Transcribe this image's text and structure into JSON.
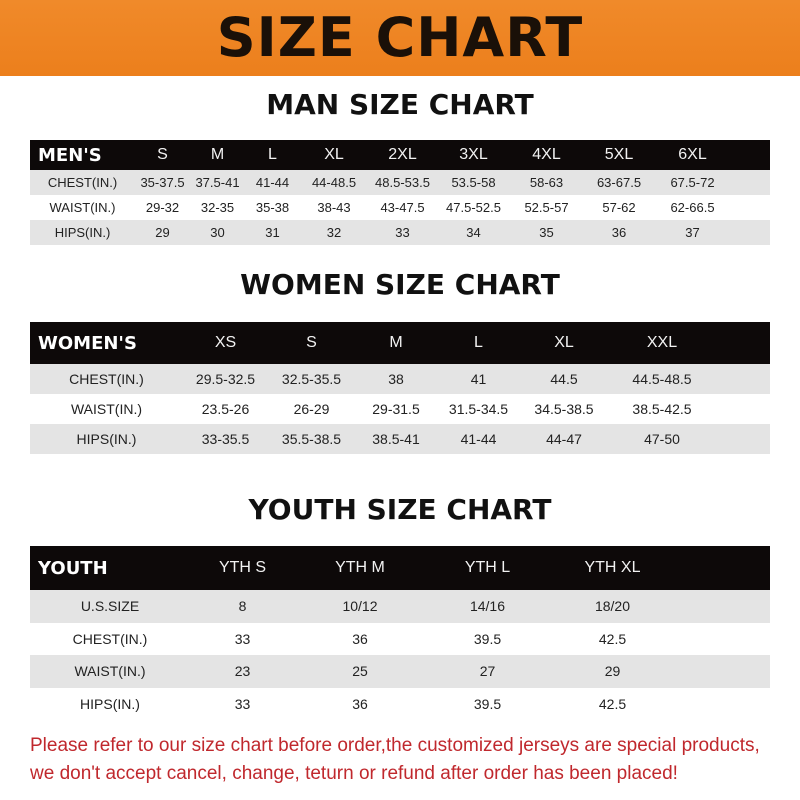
{
  "title": "SIZE CHART",
  "brand_color": "#ec7f1c",
  "tables": [
    {
      "id": "men",
      "heading": "MAN SIZE CHART",
      "header_label": "MEN'S",
      "sizes": [
        "S",
        "M",
        "L",
        "XL",
        "2XL",
        "3XL",
        "4XL",
        "5XL",
        "6XL"
      ],
      "rows": [
        {
          "label": "CHEST(IN.)",
          "values": [
            "35-37.5",
            "37.5-41",
            "41-44",
            "44-48.5",
            "48.5-53.5",
            "53.5-58",
            "58-63",
            "63-67.5",
            "67.5-72"
          ]
        },
        {
          "label": "WAIST(IN.)",
          "values": [
            "29-32",
            "32-35",
            "35-38",
            "38-43",
            "43-47.5",
            "47.5-52.5",
            "52.5-57",
            "57-62",
            "62-66.5"
          ]
        },
        {
          "label": "HIPS(IN.)",
          "values": [
            "29",
            "30",
            "31",
            "32",
            "33",
            "34",
            "35",
            "36",
            "37"
          ]
        }
      ]
    },
    {
      "id": "women",
      "heading": "WOMEN SIZE CHART",
      "header_label": "WOMEN'S",
      "sizes": [
        "XS",
        "S",
        "M",
        "L",
        "XL",
        "XXL"
      ],
      "rows": [
        {
          "label": "CHEST(IN.)",
          "values": [
            "29.5-32.5",
            "32.5-35.5",
            "38",
            "41",
            "44.5",
            "44.5-48.5"
          ]
        },
        {
          "label": "WAIST(IN.)",
          "values": [
            "23.5-26",
            "26-29",
            "29-31.5",
            "31.5-34.5",
            "34.5-38.5",
            "38.5-42.5"
          ]
        },
        {
          "label": "HIPS(IN.)",
          "values": [
            "33-35.5",
            "35.5-38.5",
            "38.5-41",
            "41-44",
            "44-47",
            "47-50"
          ]
        }
      ]
    },
    {
      "id": "youth",
      "heading": "YOUTH SIZE CHART",
      "header_label": "YOUTH",
      "sizes": [
        "YTH S",
        "YTH M",
        "YTH L",
        "YTH XL"
      ],
      "rows": [
        {
          "label": "U.S.SIZE",
          "values": [
            "8",
            "10/12",
            "14/16",
            "18/20"
          ]
        },
        {
          "label": "CHEST(IN.)",
          "values": [
            "33",
            "36",
            "39.5",
            "42.5"
          ]
        },
        {
          "label": "WAIST(IN.)",
          "values": [
            "23",
            "25",
            "27",
            "29"
          ]
        },
        {
          "label": "HIPS(IN.)",
          "values": [
            "33",
            "36",
            "39.5",
            "42.5"
          ]
        }
      ]
    }
  ],
  "notice": {
    "line1": "Please refer to our size chart before order,the customized jerseys are special products,",
    "line2": "we don't accept cancel, change, teturn or refund after order has been placed!"
  }
}
